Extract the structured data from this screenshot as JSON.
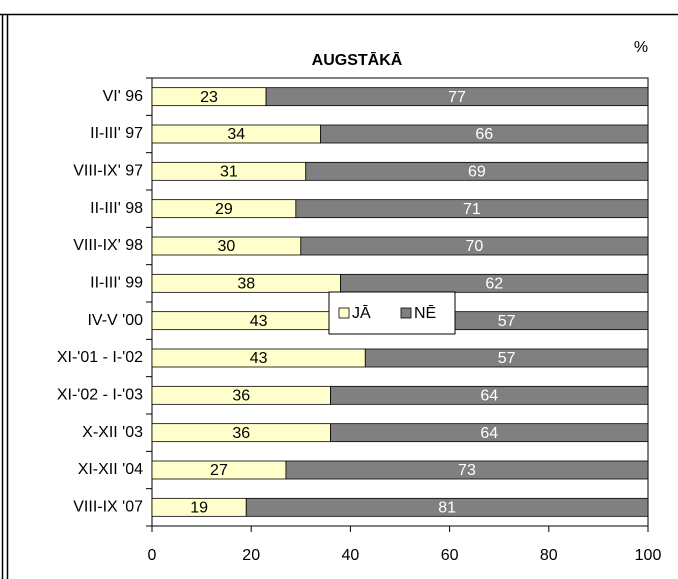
{
  "chart_data": {
    "type": "stacked_bar_horizontal",
    "title": "AUGSTĀKĀ",
    "unit_label": "%",
    "categories": [
      "VI' 96",
      "II-III' 97",
      "VIII-IX' 97",
      "II-III' 98",
      "VIII-IX' 98",
      "II-III' 99",
      "IV-V '00",
      "XI-'01 - I-'02",
      "XI-'02 - I-'03",
      "X-XII '03",
      "XI-XII '04",
      "VIII-IX '07"
    ],
    "series": [
      {
        "name": "JĀ",
        "color": "#ffffcc",
        "label_color": "#000000",
        "values": [
          23,
          34,
          31,
          29,
          30,
          38,
          43,
          43,
          36,
          36,
          27,
          19
        ]
      },
      {
        "name": "NĒ",
        "color": "#808080",
        "label_color": "#ffffff",
        "values": [
          77,
          66,
          69,
          71,
          70,
          62,
          57,
          57,
          64,
          64,
          73,
          81
        ]
      }
    ],
    "xlim": [
      0,
      100
    ],
    "xticks": [
      0,
      20,
      40,
      60,
      80,
      100
    ],
    "legend": "center"
  }
}
